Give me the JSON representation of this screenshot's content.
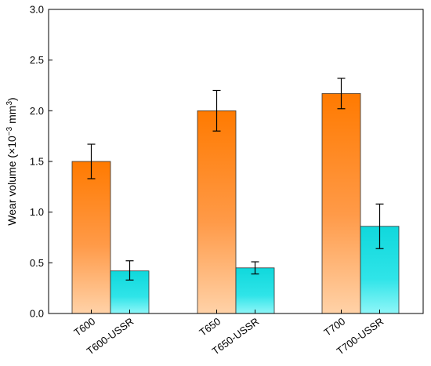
{
  "chart_data": {
    "type": "bar",
    "ylabel": "Wear volume (×10",
    "ylabel_exp": "−3",
    "ylabel_unit": " mm",
    "ylabel_unit_exp": "3",
    "ylabel_close": ")",
    "ylim": [
      0,
      3.0
    ],
    "yticks": [
      "0.0",
      "0.5",
      "1.0",
      "1.5",
      "2.0",
      "2.5",
      "3.0"
    ],
    "grid": false,
    "categories": [
      "T600",
      "T600-USSR",
      "T650",
      "T650-USSR",
      "T700",
      "T700-USSR"
    ],
    "values": [
      1.5,
      0.42,
      2.0,
      0.45,
      2.17,
      0.86
    ],
    "error_low": [
      1.33,
      0.33,
      1.8,
      0.39,
      2.02,
      0.64
    ],
    "error_high": [
      1.67,
      0.52,
      2.2,
      0.51,
      2.32,
      1.08
    ],
    "bar_styles": [
      "orange",
      "cyan",
      "orange",
      "cyan",
      "orange",
      "cyan"
    ],
    "colors": {
      "orange_top": "#ff7a00",
      "orange_bottom": "#ffd2a8",
      "cyan_top": "#10d8dc",
      "cyan_bottom": "#8ff6f8",
      "axis": "#000000"
    }
  }
}
